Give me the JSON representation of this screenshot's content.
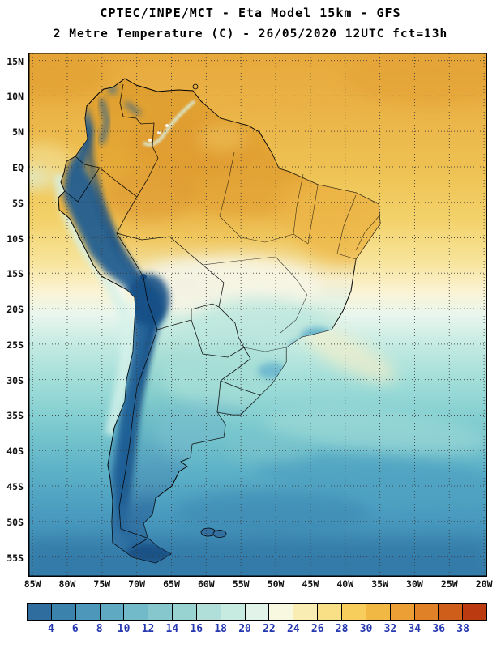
{
  "header": {
    "title_line1": "CPTEC/INPE/MCT -  Eta Model 15km - GFS",
    "title_line2": "2 Metre Temperature (C) - 26/05/2020 12UTC fct=13h"
  },
  "map": {
    "lat_labels": [
      "15N",
      "10N",
      "5N",
      "EQ",
      "5S",
      "10S",
      "15S",
      "20S",
      "25S",
      "30S",
      "35S",
      "40S",
      "45S",
      "50S",
      "55S"
    ],
    "lon_labels": [
      "85W",
      "80W",
      "75W",
      "70W",
      "65W",
      "60W",
      "55W",
      "50W",
      "45W",
      "40W",
      "35W",
      "30W",
      "25W",
      "20W"
    ]
  },
  "colorbar": {
    "tick_labels": [
      "4",
      "6",
      "8",
      "10",
      "12",
      "14",
      "16",
      "18",
      "20",
      "22",
      "24",
      "26",
      "28",
      "30",
      "32",
      "34",
      "36",
      "38"
    ],
    "segment_colors": [
      "#2E6D9E",
      "#3B83AD",
      "#4D97BA",
      "#60A9C3",
      "#72B9C9",
      "#85C7CD",
      "#99D3D1",
      "#AFDFD8",
      "#C8EBE1",
      "#E2F4EA",
      "#F8F8E0",
      "#FAEDB4",
      "#F9DF85",
      "#F7CE5B",
      "#F2B844",
      "#EC9F35",
      "#E08128",
      "#D05E1B",
      "#BC3A10"
    ],
    "label_color": "#2638B0"
  },
  "chart_data": {
    "type": "heatmap",
    "title": "CPTEC/INPE/MCT -  Eta Model 15km - GFS",
    "subtitle": "2 Metre Temperature (C) - 26/05/2020 12UTC fct=13h",
    "variable": "2 Metre Temperature",
    "units": "C",
    "model": "Eta Model 15km",
    "boundary_condition": "GFS",
    "init_date": "26/05/2020 12UTC",
    "forecast_hour": "fct=13h",
    "x_axis": {
      "kind": "longitude",
      "ticks": [
        "85W",
        "80W",
        "75W",
        "70W",
        "65W",
        "60W",
        "55W",
        "50W",
        "45W",
        "40W",
        "35W",
        "30W",
        "25W",
        "20W"
      ]
    },
    "y_axis": {
      "kind": "latitude",
      "ticks": [
        "15N",
        "10N",
        "5N",
        "EQ",
        "5S",
        "10S",
        "15S",
        "20S",
        "25S",
        "30S",
        "35S",
        "40S",
        "45S",
        "50S",
        "55S"
      ]
    },
    "colorbar": {
      "units": "C",
      "tick_values": [
        4,
        6,
        8,
        10,
        12,
        14,
        16,
        18,
        20,
        22,
        24,
        26,
        28,
        30,
        32,
        34,
        36,
        38
      ],
      "colors": [
        "#2E6D9E",
        "#3B83AD",
        "#4D97BA",
        "#60A9C3",
        "#72B9C9",
        "#85C7CD",
        "#99D3D1",
        "#AFDFD8",
        "#C8EBE1",
        "#E2F4EA",
        "#F8F8E0",
        "#FAEDB4",
        "#F9DF85",
        "#F7CE5B",
        "#F2B844",
        "#EC9F35",
        "#E08128",
        "#D05E1B",
        "#BC3A10"
      ]
    },
    "field_summary": [
      {
        "region": "Northern South America / Amazon basin (north of 10S)",
        "temp_C": "26-32"
      },
      {
        "region": "Andes cordillera / Altiplano",
        "temp_C": "<4-8"
      },
      {
        "region": "Central Brazil (13-20S)",
        "temp_C": "18-24"
      },
      {
        "region": "Southeast Brazil / Paraguay (20-30S)",
        "temp_C": "12-18"
      },
      {
        "region": "Pampas / northern Patagonia (30-45S)",
        "temp_C": "8-14"
      },
      {
        "region": "Southern Patagonia / Tierra del Fuego (45-55S)",
        "temp_C": "4-10"
      },
      {
        "region": "Tropical Atlantic (north of 15S)",
        "temp_C": "26-30"
      },
      {
        "region": "South Atlantic (35-55S)",
        "temp_C": "4-14"
      },
      {
        "region": "Pacific coastal upwelling strip (Peru/Chile coast)",
        "temp_C": "14-18"
      }
    ]
  }
}
